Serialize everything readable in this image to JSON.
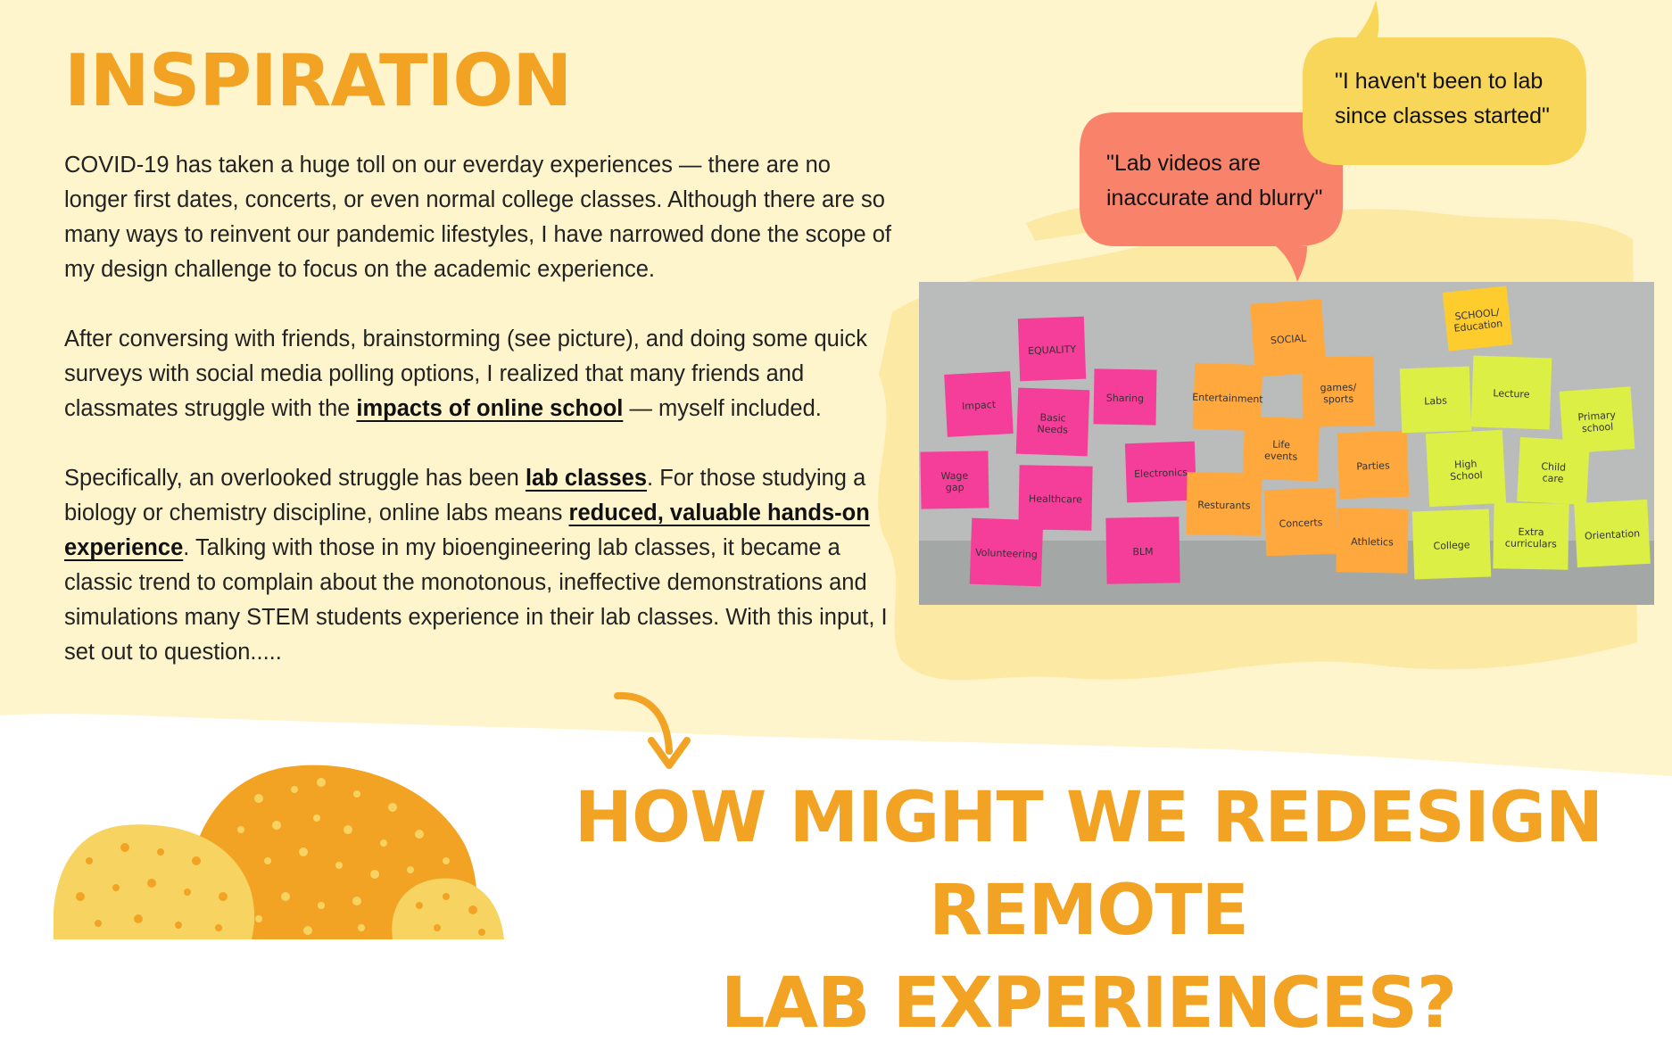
{
  "colors": {
    "cream": "#FEF5CC",
    "accent_orange": "#F2A324",
    "bubble_salmon": "#F8826A",
    "bubble_yellow": "#F8D659",
    "text": "#222222"
  },
  "section": {
    "title": "INSPIRATION"
  },
  "body": {
    "p1": "COVID-19 has taken a huge toll on our everday experiences — there are no longer first dates, concerts, or even normal college classes. Although there are so many ways to reinvent our pandemic lifestyles, I have narrowed done the scope of my design challenge to focus on the academic experience.",
    "p2_before": "After conversing with friends, brainstorming (see picture), and doing some quick surveys with social media polling options, I realized that many friends and classmates struggle with the ",
    "p2_link": "impacts of online school",
    "p2_after": " — myself included.",
    "p3_before": "Specifically, an overlooked struggle has been ",
    "p3_link1": "lab classes",
    "p3_mid": ". For those studying a biology or chemistry discipline, online labs means ",
    "p3_link2": "reduced, valuable hands-on experience",
    "p3_after": ". Talking with those in my bioengineering lab classes, it became a classic trend to complain about the monotonous, ineffective demonstrations and simulations many STEM students experience in their lab classes. With this input, I set out to question....."
  },
  "quotes": {
    "yellow": "\"I haven't been to lab since classes started\"",
    "salmon": "\"Lab videos are inaccurate and blurry\""
  },
  "photo": {
    "notes": [
      {
        "text": "EQUALITY",
        "color": "#F53D9A"
      },
      {
        "text": "Sharing",
        "color": "#F53D9A"
      },
      {
        "text": "Impact",
        "color": "#F53D9A"
      },
      {
        "text": "Basic Needs",
        "color": "#F53D9A"
      },
      {
        "text": "Wage gap",
        "color": "#F53D9A"
      },
      {
        "text": "Healthcare",
        "color": "#F53D9A"
      },
      {
        "text": "Electronics",
        "color": "#F53D9A"
      },
      {
        "text": "Volunteering",
        "color": "#F53D9A"
      },
      {
        "text": "BLM",
        "color": "#F53D9A"
      },
      {
        "text": "SOCIAL",
        "color": "#FFA83D"
      },
      {
        "text": "Entertainment",
        "color": "#FFA83D"
      },
      {
        "text": "games/ sports",
        "color": "#FFA83D"
      },
      {
        "text": "Life events",
        "color": "#FFA83D"
      },
      {
        "text": "Parties",
        "color": "#FFA83D"
      },
      {
        "text": "Resturants",
        "color": "#FFA83D"
      },
      {
        "text": "Concerts",
        "color": "#FFA83D"
      },
      {
        "text": "Athletics",
        "color": "#FFA83D"
      },
      {
        "text": "SCHOOL/ Education",
        "color": "#FFCC2E"
      },
      {
        "text": "Labs",
        "color": "#DBEF45"
      },
      {
        "text": "Lecture",
        "color": "#DBEF45"
      },
      {
        "text": "Primary school",
        "color": "#DBEF45"
      },
      {
        "text": "High School",
        "color": "#DBEF45"
      },
      {
        "text": "Child care",
        "color": "#DBEF45"
      },
      {
        "text": "College",
        "color": "#DBEF45"
      },
      {
        "text": "Extra curriculars",
        "color": "#DBEF45"
      },
      {
        "text": "Orientation",
        "color": "#DBEF45"
      }
    ]
  },
  "question": {
    "line1": "HOW MIGHT WE REDESIGN REMOTE",
    "line2": "LAB EXPERIENCES?"
  }
}
